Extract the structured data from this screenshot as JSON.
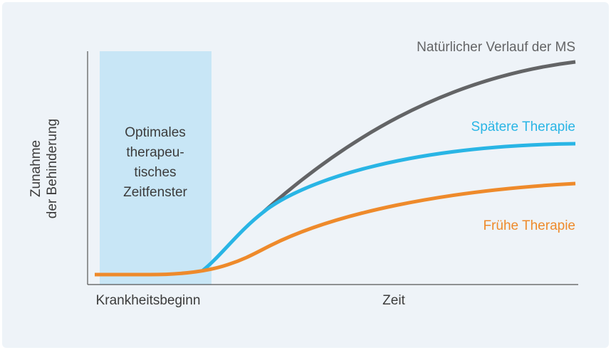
{
  "diagram": {
    "y_axis_label": [
      "Zunahme",
      "der Behinderung"
    ],
    "x_axis_labels": {
      "start": "Krankheitsbeginn",
      "end": "Zeit"
    },
    "window_label": [
      "Optimales",
      "therapeu-",
      "tisches",
      "Zeitfenster"
    ],
    "curves": [
      {
        "label": "Natürlicher Verlauf der MS",
        "color": "#636466"
      },
      {
        "label": "Spätere Therapie",
        "color": "#29b5e5"
      },
      {
        "label": "Frühe Therapie",
        "color": "#ee8a2b"
      }
    ]
  }
}
